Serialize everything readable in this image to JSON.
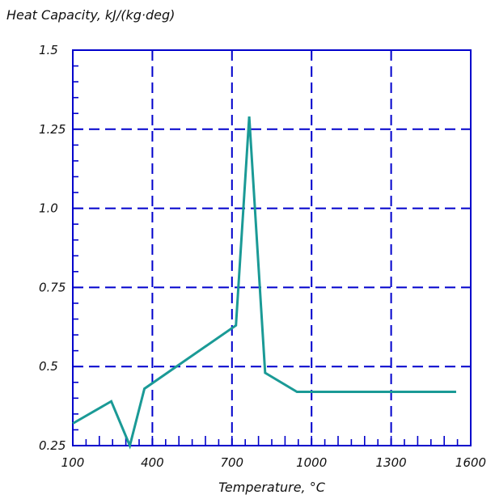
{
  "chart_data": {
    "type": "line",
    "ylabel": "Heat Capacity, kJ/(kg·deg)",
    "xlabel": "Temperature, °C",
    "xlim": [
      100,
      1600
    ],
    "ylim": [
      0.25,
      1.5
    ],
    "x_ticks": [
      {
        "value": 100,
        "label": "100"
      },
      {
        "value": 400,
        "label": "400"
      },
      {
        "value": 700,
        "label": "700"
      },
      {
        "value": 1000,
        "label": "1000"
      },
      {
        "value": 1300,
        "label": "1300"
      },
      {
        "value": 1600,
        "label": "1600"
      }
    ],
    "y_ticks": [
      {
        "value": 0.25,
        "label": "0.25"
      },
      {
        "value": 0.5,
        "label": "0.5"
      },
      {
        "value": 0.75,
        "label": "0.75"
      },
      {
        "value": 1.0,
        "label": "1.0"
      },
      {
        "value": 1.25,
        "label": "1.25"
      },
      {
        "value": 1.5,
        "label": "1.5"
      }
    ],
    "grid": true,
    "series": [
      {
        "color": "#1a9a96",
        "x": [
          100,
          245,
          315,
          370,
          715,
          765,
          825,
          945,
          1545
        ],
        "y": [
          0.32,
          0.39,
          0.25,
          0.43,
          0.63,
          1.29,
          0.48,
          0.42,
          0.42
        ]
      }
    ]
  },
  "colors": {
    "axis": "#0000cc",
    "grid": "#0000cc",
    "line": "#1a9a96"
  }
}
